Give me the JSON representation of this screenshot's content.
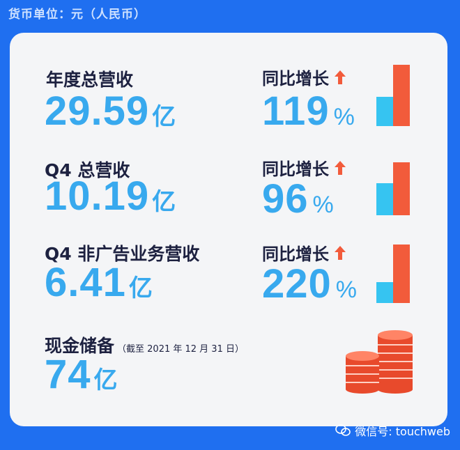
{
  "header": {
    "currency_unit": "货币单位：元（人民币）"
  },
  "metrics": [
    {
      "label": "年度总营收",
      "value": "29.59",
      "unit": "亿",
      "yoy_label": "同比增长",
      "yoy_value": "119",
      "yoy_unit": "%"
    },
    {
      "label": "Q4 总营收",
      "value": "10.19",
      "unit": "亿",
      "yoy_label": "同比增长",
      "yoy_value": "96",
      "yoy_unit": "%"
    },
    {
      "label": "Q4 非广告业务营收",
      "value": "6.41",
      "unit": "亿",
      "yoy_label": "同比增长",
      "yoy_value": "220",
      "yoy_unit": "%"
    }
  ],
  "cash": {
    "label": "现金储备",
    "note": "（截至 2021 年 12 月 31 日）",
    "value": "74",
    "unit": "亿"
  },
  "watermark": {
    "text": "微信号: touchweb"
  },
  "colors": {
    "background": "#1f6ff0",
    "accent_blue": "#38a9ee",
    "bar_blue": "#36c4f1",
    "bar_orange": "#f25b3b"
  }
}
